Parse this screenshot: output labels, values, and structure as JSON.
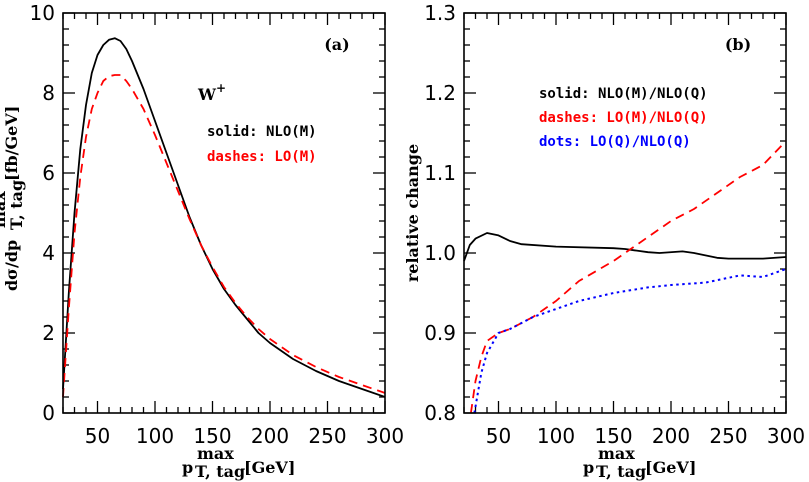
{
  "chart_data": [
    {
      "type": "line",
      "panel_label": "(a)",
      "annotation": "W",
      "annotation_sup": "+",
      "xlabel": {
        "main": "p",
        "sub": "T, tag",
        "sup": "max",
        "unit": "[GeV]"
      },
      "ylabel": {
        "main": "dσ/dp",
        "sub": "T, tag",
        "sup": "max",
        "unit": "[fb/GeV]"
      },
      "xlim": [
        20,
        300
      ],
      "ylim": [
        0,
        10
      ],
      "xticks": [
        50,
        100,
        150,
        200,
        250,
        300
      ],
      "yticks": [
        0,
        2,
        4,
        6,
        8,
        10
      ],
      "grid": false,
      "series": [
        {
          "name": "solid: NLO(M)",
          "style": "solid",
          "color": "#000000",
          "x": [
            20,
            25,
            30,
            35,
            40,
            45,
            50,
            55,
            60,
            65,
            70,
            75,
            80,
            90,
            100,
            110,
            120,
            130,
            140,
            150,
            160,
            170,
            180,
            190,
            200,
            220,
            240,
            260,
            280,
            300
          ],
          "y": [
            0.6,
            3.0,
            5.0,
            6.6,
            7.7,
            8.5,
            8.95,
            9.2,
            9.33,
            9.37,
            9.3,
            9.1,
            8.8,
            8.1,
            7.3,
            6.5,
            5.7,
            4.9,
            4.2,
            3.6,
            3.1,
            2.7,
            2.35,
            2.0,
            1.75,
            1.35,
            1.05,
            0.8,
            0.6,
            0.4
          ]
        },
        {
          "name": "dashes: LO(M)",
          "style": "dashed",
          "color": "#ff0000",
          "x": [
            20,
            25,
            30,
            35,
            40,
            45,
            50,
            55,
            60,
            65,
            70,
            75,
            80,
            90,
            100,
            110,
            120,
            130,
            140,
            150,
            160,
            170,
            180,
            190,
            200,
            220,
            240,
            260,
            280,
            300
          ],
          "y": [
            0.4,
            2.6,
            4.5,
            5.9,
            6.9,
            7.6,
            8.0,
            8.3,
            8.42,
            8.45,
            8.45,
            8.3,
            8.1,
            7.6,
            6.95,
            6.25,
            5.55,
            4.85,
            4.2,
            3.65,
            3.15,
            2.75,
            2.4,
            2.1,
            1.85,
            1.45,
            1.15,
            0.9,
            0.7,
            0.5
          ]
        }
      ]
    },
    {
      "type": "line",
      "panel_label": "(b)",
      "xlabel": {
        "main": "p",
        "sub": "T, tag",
        "sup": "max",
        "unit": "[GeV]"
      },
      "ylabel": {
        "main": "relative change"
      },
      "xlim": [
        20,
        300
      ],
      "ylim": [
        0.8,
        1.3
      ],
      "xticks": [
        50,
        100,
        150,
        200,
        250,
        300
      ],
      "yticks": [
        0.8,
        0.9,
        1.0,
        1.1,
        1.2,
        1.3
      ],
      "ytick_labels": [
        "0.8",
        "0.9",
        "1.0",
        "1.1",
        "1.2",
        "1.3"
      ],
      "grid": false,
      "series": [
        {
          "name": "solid: NLO(M)/NLO(Q)",
          "style": "solid",
          "color": "#000000",
          "x": [
            20,
            25,
            30,
            40,
            50,
            60,
            70,
            100,
            150,
            160,
            180,
            190,
            210,
            220,
            240,
            250,
            280,
            300
          ],
          "y": [
            0.99,
            1.01,
            1.018,
            1.025,
            1.022,
            1.015,
            1.011,
            1.008,
            1.006,
            1.005,
            1.001,
            1.0,
            1.002,
            1.0,
            0.994,
            0.993,
            0.993,
            0.995
          ]
        },
        {
          "name": "dashes: LO(M)/NLO(Q)",
          "style": "dashed",
          "color": "#ff0000",
          "x": [
            26,
            30,
            35,
            40,
            50,
            60,
            80,
            100,
            120,
            150,
            160,
            180,
            200,
            220,
            240,
            260,
            280,
            300
          ],
          "y": [
            0.8,
            0.84,
            0.87,
            0.89,
            0.9,
            0.905,
            0.92,
            0.94,
            0.965,
            0.99,
            1.0,
            1.02,
            1.04,
            1.055,
            1.075,
            1.095,
            1.11,
            1.14
          ]
        },
        {
          "name": "dots: LO(Q)/NLO(Q)",
          "style": "dotted",
          "color": "#0000ff",
          "x": [
            29,
            35,
            40,
            50,
            60,
            80,
            100,
            120,
            150,
            180,
            200,
            230,
            260,
            280,
            300
          ],
          "y": [
            0.8,
            0.85,
            0.875,
            0.9,
            0.905,
            0.92,
            0.93,
            0.94,
            0.95,
            0.957,
            0.96,
            0.963,
            0.972,
            0.97,
            0.98
          ]
        }
      ]
    }
  ]
}
